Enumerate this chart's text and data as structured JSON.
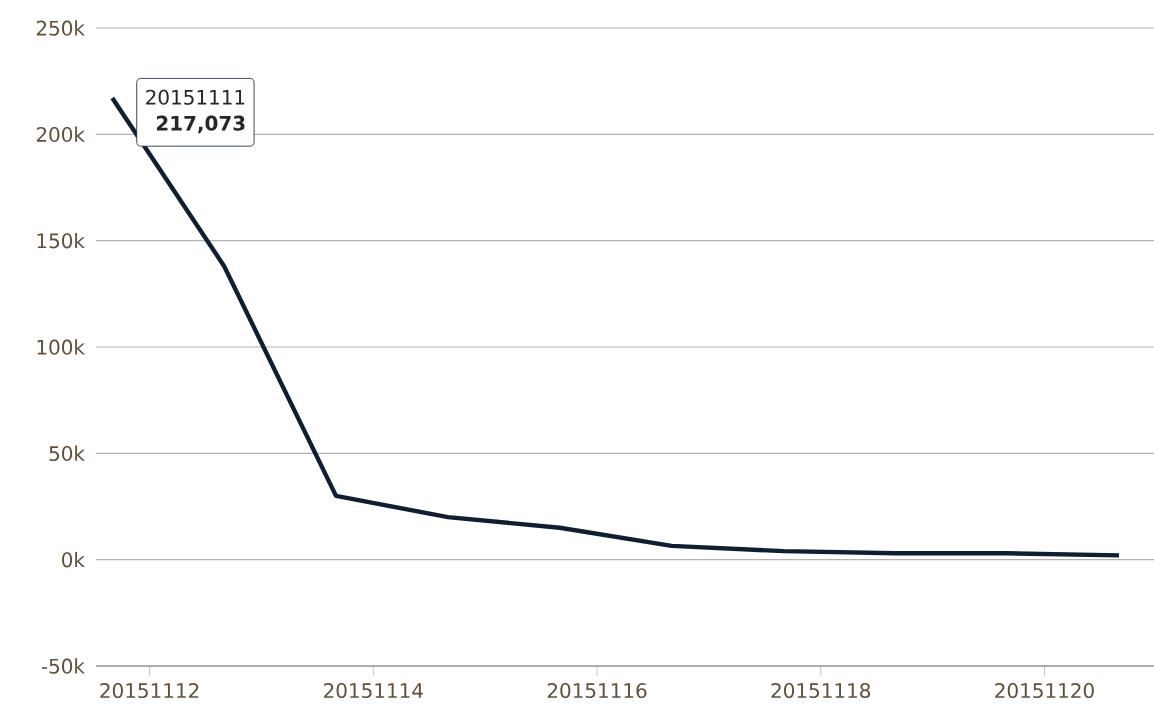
{
  "chart_data": {
    "type": "line",
    "x": [
      "2015-11-11T16:00",
      "2015-11-12T16:00",
      "2015-11-13T16:00",
      "2015-11-14T16:00",
      "2015-11-15T16:00",
      "2015-11-16T16:00",
      "2015-11-17T16:00",
      "2015-11-18T16:00",
      "2015-11-19T16:00",
      "2015-11-20T16:00"
    ],
    "series": [
      {
        "color": "#0f1f33",
        "values": [
          217073,
          138000,
          30000,
          20000,
          15000,
          6500,
          4000,
          3000,
          3000,
          2000
        ]
      }
    ],
    "xlim": [
      "2015-11-11T12:30",
      "2015-11-20T23:30"
    ],
    "xticks": [
      {
        "value": "2015-11-12",
        "label": "20151112"
      },
      {
        "value": "2015-11-14",
        "label": "20151114"
      },
      {
        "value": "2015-11-16",
        "label": "20151116"
      },
      {
        "value": "2015-11-18",
        "label": "20151118"
      },
      {
        "value": "2015-11-20",
        "label": "20151120"
      }
    ],
    "ylim": [
      -50000,
      250000
    ],
    "yticks": [
      {
        "value": -50000,
        "label": "-50k"
      },
      {
        "value": 0,
        "label": "0k"
      },
      {
        "value": 50000,
        "label": "50k"
      },
      {
        "value": 100000,
        "label": "100k"
      },
      {
        "value": 150000,
        "label": "150k"
      },
      {
        "value": 200000,
        "label": "200k"
      },
      {
        "value": 250000,
        "label": "250k"
      }
    ],
    "grid": "y",
    "marker": "none",
    "line_style": "solid",
    "annotations": [
      {
        "text": "20151111",
        "x": "2015-11-11T16:00",
        "y": 217073
      },
      "217,073"
    ]
  }
}
